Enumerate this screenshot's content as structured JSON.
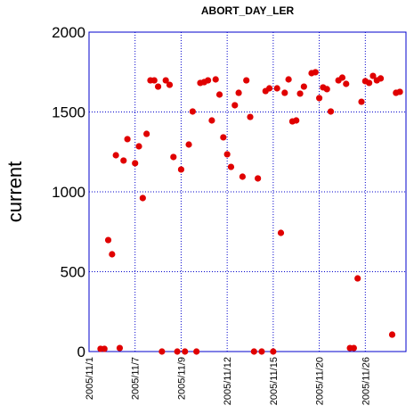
{
  "chart_data": {
    "type": "scatter",
    "title": "ABORT_DAY_LER",
    "y_label": "current",
    "x": [
      3,
      4,
      5,
      6,
      7,
      8,
      9,
      10,
      12,
      13,
      14,
      15,
      16,
      17,
      18,
      19,
      20,
      21,
      22,
      23,
      24,
      25,
      26,
      27,
      28,
      29,
      30,
      31,
      32,
      33,
      34,
      35,
      36,
      37,
      38,
      39,
      40,
      41,
      42,
      43,
      44,
      45,
      46,
      47,
      48,
      49,
      50,
      51,
      52,
      53,
      54,
      55,
      56,
      58,
      59,
      60,
      61,
      62,
      63,
      65,
      66,
      67,
      68,
      69,
      70,
      71,
      72,
      73,
      74,
      75,
      76,
      79,
      80,
      81
    ],
    "series": [
      {
        "name": "current",
        "color": "#e00000",
        "values": [
          17,
          17,
          698,
          609,
          1229,
          22,
          1196,
          1330,
          1179,
          1285,
          961,
          1363,
          1698,
          1698,
          1659,
          0,
          1698,
          1670,
          1218,
          0,
          1140,
          0,
          1296,
          1503,
          0,
          1682,
          1687,
          1698,
          1447,
          1704,
          1609,
          1341,
          1235,
          1156,
          1542,
          1620,
          1095,
          1698,
          1469,
          0,
          1084,
          0,
          1631,
          1648,
          0,
          1648,
          743,
          1620,
          1704,
          1441,
          1447,
          1615,
          1659,
          1743,
          1749,
          1587,
          1654,
          1643,
          1503,
          1698,
          1715,
          1676,
          22,
          22,
          458,
          1564,
          1693,
          1682,
          1726,
          1698,
          1710,
          106,
          1620,
          1626
        ]
      }
    ],
    "xlim": [
      0,
      82.6
    ],
    "xticks": [
      {
        "value": 0,
        "label": "2005/11/1"
      },
      {
        "value": 12,
        "label": "2005/11/7"
      },
      {
        "value": 24,
        "label": "2005/11/9"
      },
      {
        "value": 36,
        "label": "2005/11/12"
      },
      {
        "value": 48,
        "label": "2005/11/15"
      },
      {
        "value": 60,
        "label": "2005/11/20"
      },
      {
        "value": 72,
        "label": "2005/11/26"
      }
    ],
    "ylim": [
      0,
      2000
    ],
    "yticks": [
      0,
      500,
      1000,
      1500,
      2000
    ],
    "grid": true
  }
}
